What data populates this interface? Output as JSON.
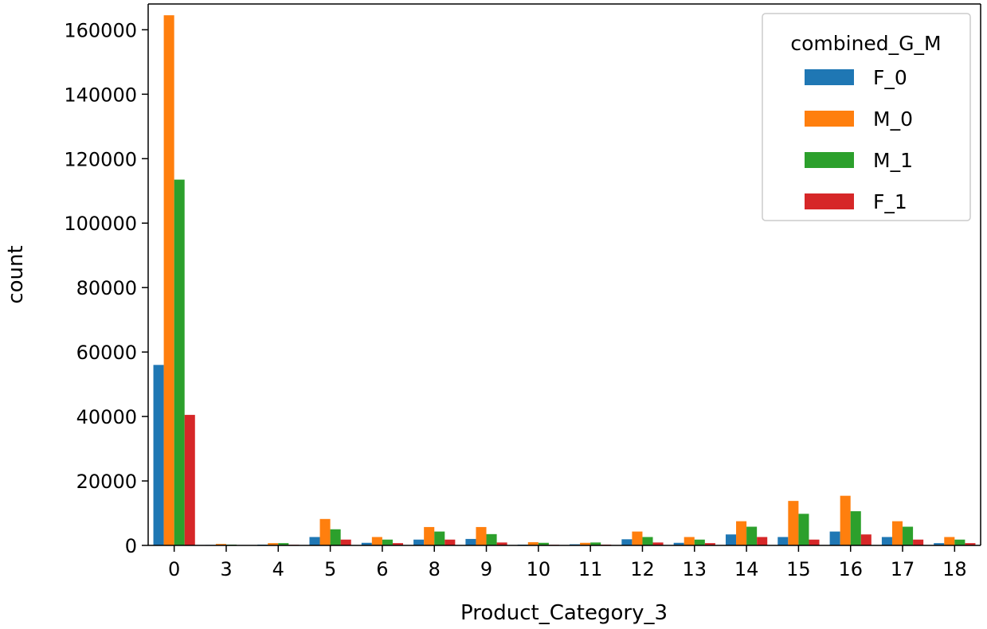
{
  "chart_data": {
    "type": "bar",
    "xlabel": "Product_Category_3",
    "ylabel": "count",
    "ylim": [
      0,
      168000
    ],
    "yticks": [
      0,
      20000,
      40000,
      60000,
      80000,
      100000,
      120000,
      140000,
      160000
    ],
    "categories": [
      "0",
      "3",
      "4",
      "5",
      "6",
      "8",
      "9",
      "10",
      "11",
      "12",
      "13",
      "14",
      "15",
      "16",
      "17",
      "18"
    ],
    "legend": {
      "title": "combined_G_M",
      "placement": "top-right"
    },
    "grid": false,
    "series": [
      {
        "name": "F_0",
        "color": "#1f77b4",
        "values": [
          56000,
          150,
          250,
          2600,
          800,
          1800,
          2000,
          250,
          350,
          1900,
          800,
          3400,
          2600,
          4300,
          2600,
          700
        ]
      },
      {
        "name": "M_0",
        "color": "#ff7f0e",
        "values": [
          164500,
          450,
          700,
          8200,
          2600,
          5700,
          5700,
          1000,
          800,
          4300,
          2600,
          7500,
          13800,
          15400,
          7500,
          2600
        ]
      },
      {
        "name": "M_1",
        "color": "#2ca02c",
        "values": [
          113500,
          250,
          700,
          5000,
          1800,
          4300,
          3500,
          800,
          900,
          2600,
          1800,
          5800,
          9800,
          10600,
          5800,
          1800
        ]
      },
      {
        "name": "F_1",
        "color": "#d62728",
        "values": [
          40500,
          100,
          200,
          1800,
          700,
          1800,
          900,
          200,
          250,
          900,
          700,
          2600,
          1800,
          3400,
          1800,
          700
        ]
      }
    ]
  }
}
